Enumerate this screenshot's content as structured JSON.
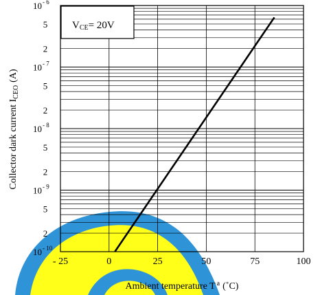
{
  "chart_data": {
    "type": "line",
    "xlabel": "Ambient temperature T",
    "xlabel_sub": "a",
    "xlabel_unit": "(˚C)",
    "ylabel": "Collector dark current I",
    "ylabel_sub": "CEO",
    "ylabel_unit": "(A)",
    "annotation": {
      "main": "V",
      "sub": "CE",
      "rest": "= 20V"
    },
    "x_ticks": [
      "- 25",
      "0",
      "25",
      "50",
      "75",
      "100"
    ],
    "x_tick_values": [
      -25,
      0,
      25,
      50,
      75,
      100
    ],
    "xlim": [
      -25,
      100
    ],
    "y_scale": "log",
    "ylim": [
      1e-10,
      1e-06
    ],
    "y_ticks": [
      {
        "value": 1e-06,
        "base": "10",
        "exp": "- 6"
      },
      {
        "value": 5e-07,
        "label": "5"
      },
      {
        "value": 2e-07,
        "label": "2"
      },
      {
        "value": 1e-07,
        "base": "10",
        "exp": "- 7"
      },
      {
        "value": 5e-08,
        "label": "5"
      },
      {
        "value": 2e-08,
        "label": "2"
      },
      {
        "value": 1e-08,
        "base": "10",
        "exp": "- 8"
      },
      {
        "value": 5e-09,
        "label": "5"
      },
      {
        "value": 2e-09,
        "label": "2"
      },
      {
        "value": 1e-09,
        "base": "10",
        "exp": "- 9"
      },
      {
        "value": 5e-10,
        "label": "5"
      },
      {
        "value": 2e-10,
        "label": "2"
      },
      {
        "value": 1e-10,
        "base": "10",
        "exp": "- 10"
      }
    ],
    "grid": true,
    "series": [
      {
        "points": [
          [
            3,
            1e-10
          ],
          [
            85,
            6.4e-07
          ]
        ]
      }
    ],
    "colors": {
      "line": "#000000",
      "grid": "#000000",
      "watermark_blue": "#2f93d8",
      "watermark_yellow": "#ffff1a"
    }
  }
}
